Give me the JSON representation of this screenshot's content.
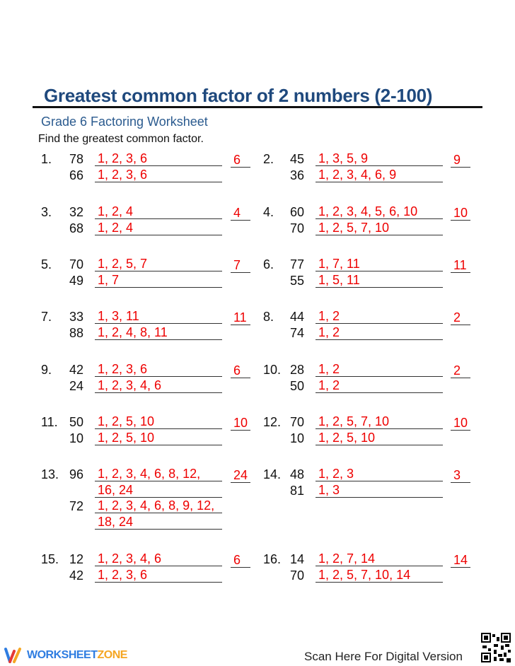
{
  "title": "Greatest common factor of 2 numbers (2-100)",
  "subtitle": "Grade 6 Factoring Worksheet",
  "instructions": "Find the greatest common factor.",
  "problems": [
    {
      "label": "1.",
      "answer": "6",
      "numbers": [
        {
          "value": "78",
          "factors": [
            "1, 2, 3, 6"
          ]
        },
        {
          "value": "66",
          "factors": [
            "1, 2, 3, 6"
          ]
        }
      ]
    },
    {
      "label": "2.",
      "answer": "9",
      "numbers": [
        {
          "value": "45",
          "factors": [
            "1, 3, 5, 9"
          ]
        },
        {
          "value": "36",
          "factors": [
            "1, 2, 3, 4, 6, 9"
          ]
        }
      ]
    },
    {
      "label": "3.",
      "answer": "4",
      "numbers": [
        {
          "value": "32",
          "factors": [
            "1, 2, 4"
          ]
        },
        {
          "value": "68",
          "factors": [
            "1, 2, 4"
          ]
        }
      ]
    },
    {
      "label": "4.",
      "answer": "10",
      "numbers": [
        {
          "value": "60",
          "factors": [
            "1, 2, 3, 4, 5, 6, 10"
          ]
        },
        {
          "value": "70",
          "factors": [
            "1, 2, 5, 7, 10"
          ]
        }
      ]
    },
    {
      "label": "5.",
      "answer": "7",
      "numbers": [
        {
          "value": "70",
          "factors": [
            "1, 2, 5, 7"
          ]
        },
        {
          "value": "49",
          "factors": [
            "1, 7"
          ]
        }
      ]
    },
    {
      "label": "6.",
      "answer": "11",
      "numbers": [
        {
          "value": "77",
          "factors": [
            "1, 7, 11"
          ]
        },
        {
          "value": "55",
          "factors": [
            "1, 5, 11"
          ]
        }
      ]
    },
    {
      "label": "7.",
      "answer": "11",
      "numbers": [
        {
          "value": "33",
          "factors": [
            "1, 3, 11"
          ]
        },
        {
          "value": "88",
          "factors": [
            "1, 2, 4, 8, 11"
          ]
        }
      ]
    },
    {
      "label": "8.",
      "answer": "2",
      "numbers": [
        {
          "value": "44",
          "factors": [
            "1, 2"
          ]
        },
        {
          "value": "74",
          "factors": [
            "1, 2"
          ]
        }
      ]
    },
    {
      "label": "9.",
      "answer": "6",
      "numbers": [
        {
          "value": "42",
          "factors": [
            "1, 2, 3, 6"
          ]
        },
        {
          "value": "24",
          "factors": [
            "1, 2, 3, 4, 6"
          ]
        }
      ]
    },
    {
      "label": "10.",
      "answer": "2",
      "numbers": [
        {
          "value": "28",
          "factors": [
            "1, 2"
          ]
        },
        {
          "value": "50",
          "factors": [
            "1, 2"
          ]
        }
      ]
    },
    {
      "label": "11.",
      "answer": "10",
      "numbers": [
        {
          "value": "50",
          "factors": [
            "1, 2, 5, 10"
          ]
        },
        {
          "value": "10",
          "factors": [
            "1, 2, 5, 10"
          ]
        }
      ]
    },
    {
      "label": "12.",
      "answer": "10",
      "numbers": [
        {
          "value": "70",
          "factors": [
            "1, 2, 5, 7, 10"
          ]
        },
        {
          "value": "10",
          "factors": [
            "1, 2, 5, 10"
          ]
        }
      ]
    },
    {
      "label": "13.",
      "answer": "24",
      "numbers": [
        {
          "value": "96",
          "factors": [
            "1, 2, 3, 4, 6, 8, 12,",
            "16, 24"
          ]
        },
        {
          "value": "72",
          "factors": [
            "1, 2, 3, 4, 6, 8, 9, 12,",
            "18, 24"
          ]
        }
      ]
    },
    {
      "label": "14.",
      "answer": "3",
      "numbers": [
        {
          "value": "48",
          "factors": [
            "1, 2, 3"
          ]
        },
        {
          "value": "81",
          "factors": [
            "1, 3"
          ]
        }
      ]
    },
    {
      "label": "15.",
      "answer": "6",
      "numbers": [
        {
          "value": "12",
          "factors": [
            "1, 2, 3, 4, 6"
          ]
        },
        {
          "value": "42",
          "factors": [
            "1, 2, 3, 6"
          ]
        }
      ]
    },
    {
      "label": "16.",
      "answer": "14",
      "numbers": [
        {
          "value": "14",
          "factors": [
            "1, 2, 7, 14"
          ]
        },
        {
          "value": "70",
          "factors": [
            "1, 2, 5, 7, 10, 14"
          ]
        }
      ]
    }
  ],
  "footer": {
    "brand_main": "WORKSHEET",
    "brand_accent": "ZONE",
    "scan_text": "Scan Here For Digital Version"
  },
  "colors": {
    "title": "#1f497d",
    "answers": "#e00000",
    "brand_blue": "#2f7de1",
    "brand_orange": "#f5a623"
  }
}
